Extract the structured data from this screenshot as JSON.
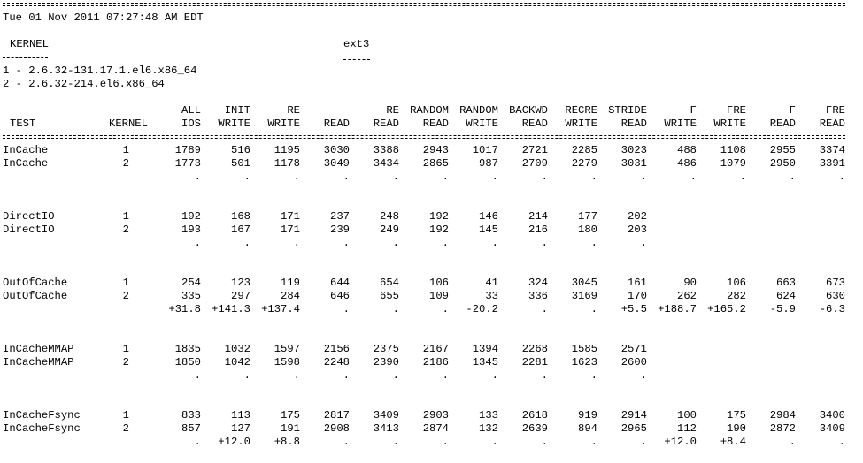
{
  "timestamp": "Tue 01 Nov 2011 07:27:48 AM EDT",
  "kernel_label": "KERNEL",
  "kernel_underline": "----------",
  "fs_label": "ext3",
  "fs_underline": "====",
  "kernels": [
    "1 - 2.6.32-131.17.1.el6.x86_64",
    "2 - 2.6.32-214.el6.x86_64"
  ],
  "header_test": "TEST",
  "header_kernel": "KERNEL",
  "columns": [
    {
      "top": "ALL",
      "bottom": "IOS"
    },
    {
      "top": "INIT",
      "bottom": "WRITE"
    },
    {
      "top": "RE",
      "bottom": "WRITE"
    },
    {
      "top": "",
      "bottom": "READ"
    },
    {
      "top": "RE",
      "bottom": "READ"
    },
    {
      "top": "RANDOM",
      "bottom": "READ"
    },
    {
      "top": "RANDOM",
      "bottom": "WRITE"
    },
    {
      "top": "BACKWD",
      "bottom": "READ"
    },
    {
      "top": "RECRE",
      "bottom": "WRITE"
    },
    {
      "top": "STRIDE",
      "bottom": "READ"
    },
    {
      "top": "F",
      "bottom": "WRITE"
    },
    {
      "top": "FRE",
      "bottom": "WRITE"
    },
    {
      "top": "F",
      "bottom": "READ"
    },
    {
      "top": "FRE",
      "bottom": "READ"
    }
  ],
  "groups": [
    {
      "rows": [
        {
          "test": "InCache",
          "kernel": "1",
          "values": [
            "1789",
            "516",
            "1195",
            "3030",
            "3388",
            "2943",
            "1017",
            "2721",
            "2285",
            "3023",
            "488",
            "1108",
            "2955",
            "3374"
          ]
        },
        {
          "test": "InCache",
          "kernel": "2",
          "values": [
            "1773",
            "501",
            "1178",
            "3049",
            "3434",
            "2865",
            "987",
            "2709",
            "2279",
            "3031",
            "486",
            "1079",
            "2950",
            "3391"
          ]
        }
      ],
      "diff": [
        ".",
        ".",
        ".",
        ".",
        ".",
        ".",
        ".",
        ".",
        ".",
        ".",
        ".",
        ".",
        ".",
        "."
      ]
    },
    {
      "rows": [
        {
          "test": "DirectIO",
          "kernel": "1",
          "values": [
            "192",
            "168",
            "171",
            "237",
            "248",
            "192",
            "146",
            "214",
            "177",
            "202",
            "",
            "",
            "",
            ""
          ]
        },
        {
          "test": "DirectIO",
          "kernel": "2",
          "values": [
            "193",
            "167",
            "171",
            "239",
            "249",
            "192",
            "145",
            "216",
            "180",
            "203",
            "",
            "",
            "",
            ""
          ]
        }
      ],
      "diff": [
        ".",
        ".",
        ".",
        ".",
        ".",
        ".",
        ".",
        ".",
        ".",
        ".",
        "",
        "",
        "",
        ""
      ]
    },
    {
      "rows": [
        {
          "test": "OutOfCache",
          "kernel": "1",
          "values": [
            "254",
            "123",
            "119",
            "644",
            "654",
            "106",
            "41",
            "324",
            "3045",
            "161",
            "90",
            "106",
            "663",
            "673"
          ]
        },
        {
          "test": "OutOfCache",
          "kernel": "2",
          "values": [
            "335",
            "297",
            "284",
            "646",
            "655",
            "109",
            "33",
            "336",
            "3169",
            "170",
            "262",
            "282",
            "624",
            "630"
          ]
        }
      ],
      "diff": [
        "+31.8",
        "+141.3",
        "+137.4",
        ".",
        ".",
        ".",
        "-20.2",
        ".",
        ".",
        "+5.5",
        "+188.7",
        "+165.2",
        "-5.9",
        "-6.3"
      ]
    },
    {
      "rows": [
        {
          "test": "InCacheMMAP",
          "kernel": "1",
          "values": [
            "1835",
            "1032",
            "1597",
            "2156",
            "2375",
            "2167",
            "1394",
            "2268",
            "1585",
            "2571",
            "",
            "",
            "",
            ""
          ]
        },
        {
          "test": "InCacheMMAP",
          "kernel": "2",
          "values": [
            "1850",
            "1042",
            "1598",
            "2248",
            "2390",
            "2186",
            "1345",
            "2281",
            "1623",
            "2600",
            "",
            "",
            "",
            ""
          ]
        }
      ],
      "diff": [
        ".",
        ".",
        ".",
        ".",
        ".",
        ".",
        ".",
        ".",
        ".",
        ".",
        "",
        "",
        "",
        ""
      ]
    },
    {
      "rows": [
        {
          "test": "InCacheFsync",
          "kernel": "1",
          "values": [
            "833",
            "113",
            "175",
            "2817",
            "3409",
            "2903",
            "133",
            "2618",
            "919",
            "2914",
            "100",
            "175",
            "2984",
            "3400"
          ]
        },
        {
          "test": "InCacheFsync",
          "kernel": "2",
          "values": [
            "857",
            "127",
            "191",
            "2908",
            "3413",
            "2874",
            "132",
            "2639",
            "894",
            "2965",
            "112",
            "190",
            "2872",
            "3409"
          ]
        }
      ],
      "diff": [
        ".",
        "+12.0",
        "+8.8",
        ".",
        ".",
        ".",
        ".",
        ".",
        ".",
        ".",
        "+12.0",
        "+8.4",
        ".",
        "."
      ]
    }
  ]
}
